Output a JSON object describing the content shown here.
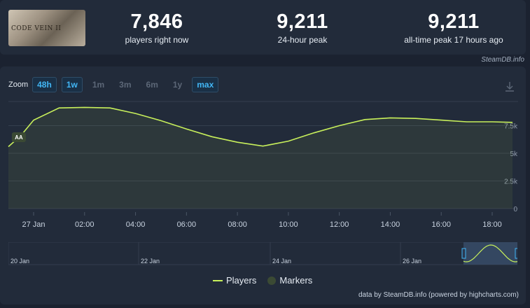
{
  "game": {
    "thumbnail_text": "CODE VEIN II"
  },
  "stats": [
    {
      "value": "7,846",
      "label": "players right now"
    },
    {
      "value": "9,211",
      "label": "24-hour peak"
    },
    {
      "value": "9,211",
      "label": "all-time peak 17 hours ago"
    }
  ],
  "watermark": "SteamDB.info",
  "zoom": {
    "label": "Zoom",
    "buttons": [
      {
        "label": "48h",
        "active": true
      },
      {
        "label": "1w",
        "active": true
      },
      {
        "label": "1m",
        "active": false
      },
      {
        "label": "3m",
        "active": false
      },
      {
        "label": "6m",
        "active": false
      },
      {
        "label": "1y",
        "active": false
      },
      {
        "label": "max",
        "active": true
      }
    ]
  },
  "legend": {
    "players": "Players",
    "markers": "Markers"
  },
  "marker_label": "AA",
  "credits": "data by SteamDB.info (powered by highcharts.com)",
  "colors": {
    "series": "#c8f05b",
    "accent": "#42b6f5",
    "marker": "#3b4a34"
  },
  "chart_data": {
    "type": "area",
    "series": [
      {
        "name": "Players",
        "x_hours": [
          -1.0,
          -0.5,
          0.0,
          1.0,
          2.0,
          3.0,
          4.0,
          5.0,
          6.0,
          7.0,
          8.0,
          9.0,
          10.0,
          11.0,
          12.0,
          13.0,
          14.0,
          15.0,
          16.0,
          17.0,
          18.0,
          18.8
        ],
        "values": [
          5600,
          6600,
          8000,
          9100,
          9150,
          9100,
          8600,
          7950,
          7200,
          6500,
          6000,
          5650,
          6100,
          6850,
          7500,
          8050,
          8200,
          8150,
          8000,
          7850,
          7850,
          7800
        ]
      }
    ],
    "x_tick_labels": [
      "27 Jan",
      "02:00",
      "04:00",
      "06:00",
      "08:00",
      "10:00",
      "12:00",
      "14:00",
      "16:00",
      "18:00"
    ],
    "x_tick_hours": [
      0,
      2,
      4,
      6,
      8,
      10,
      12,
      14,
      16,
      18
    ],
    "y_tick_labels": [
      "0",
      "2.5k",
      "5k",
      "7.5k"
    ],
    "y_ticks": [
      0,
      2500,
      5000,
      7500
    ],
    "ylim": [
      0,
      10000
    ],
    "markers": [
      {
        "label": "AA",
        "x_hours": -0.8
      }
    ],
    "navigator_labels": [
      "20 Jan",
      "22 Jan",
      "24 Jan",
      "26 Jan"
    ],
    "grid": true
  }
}
